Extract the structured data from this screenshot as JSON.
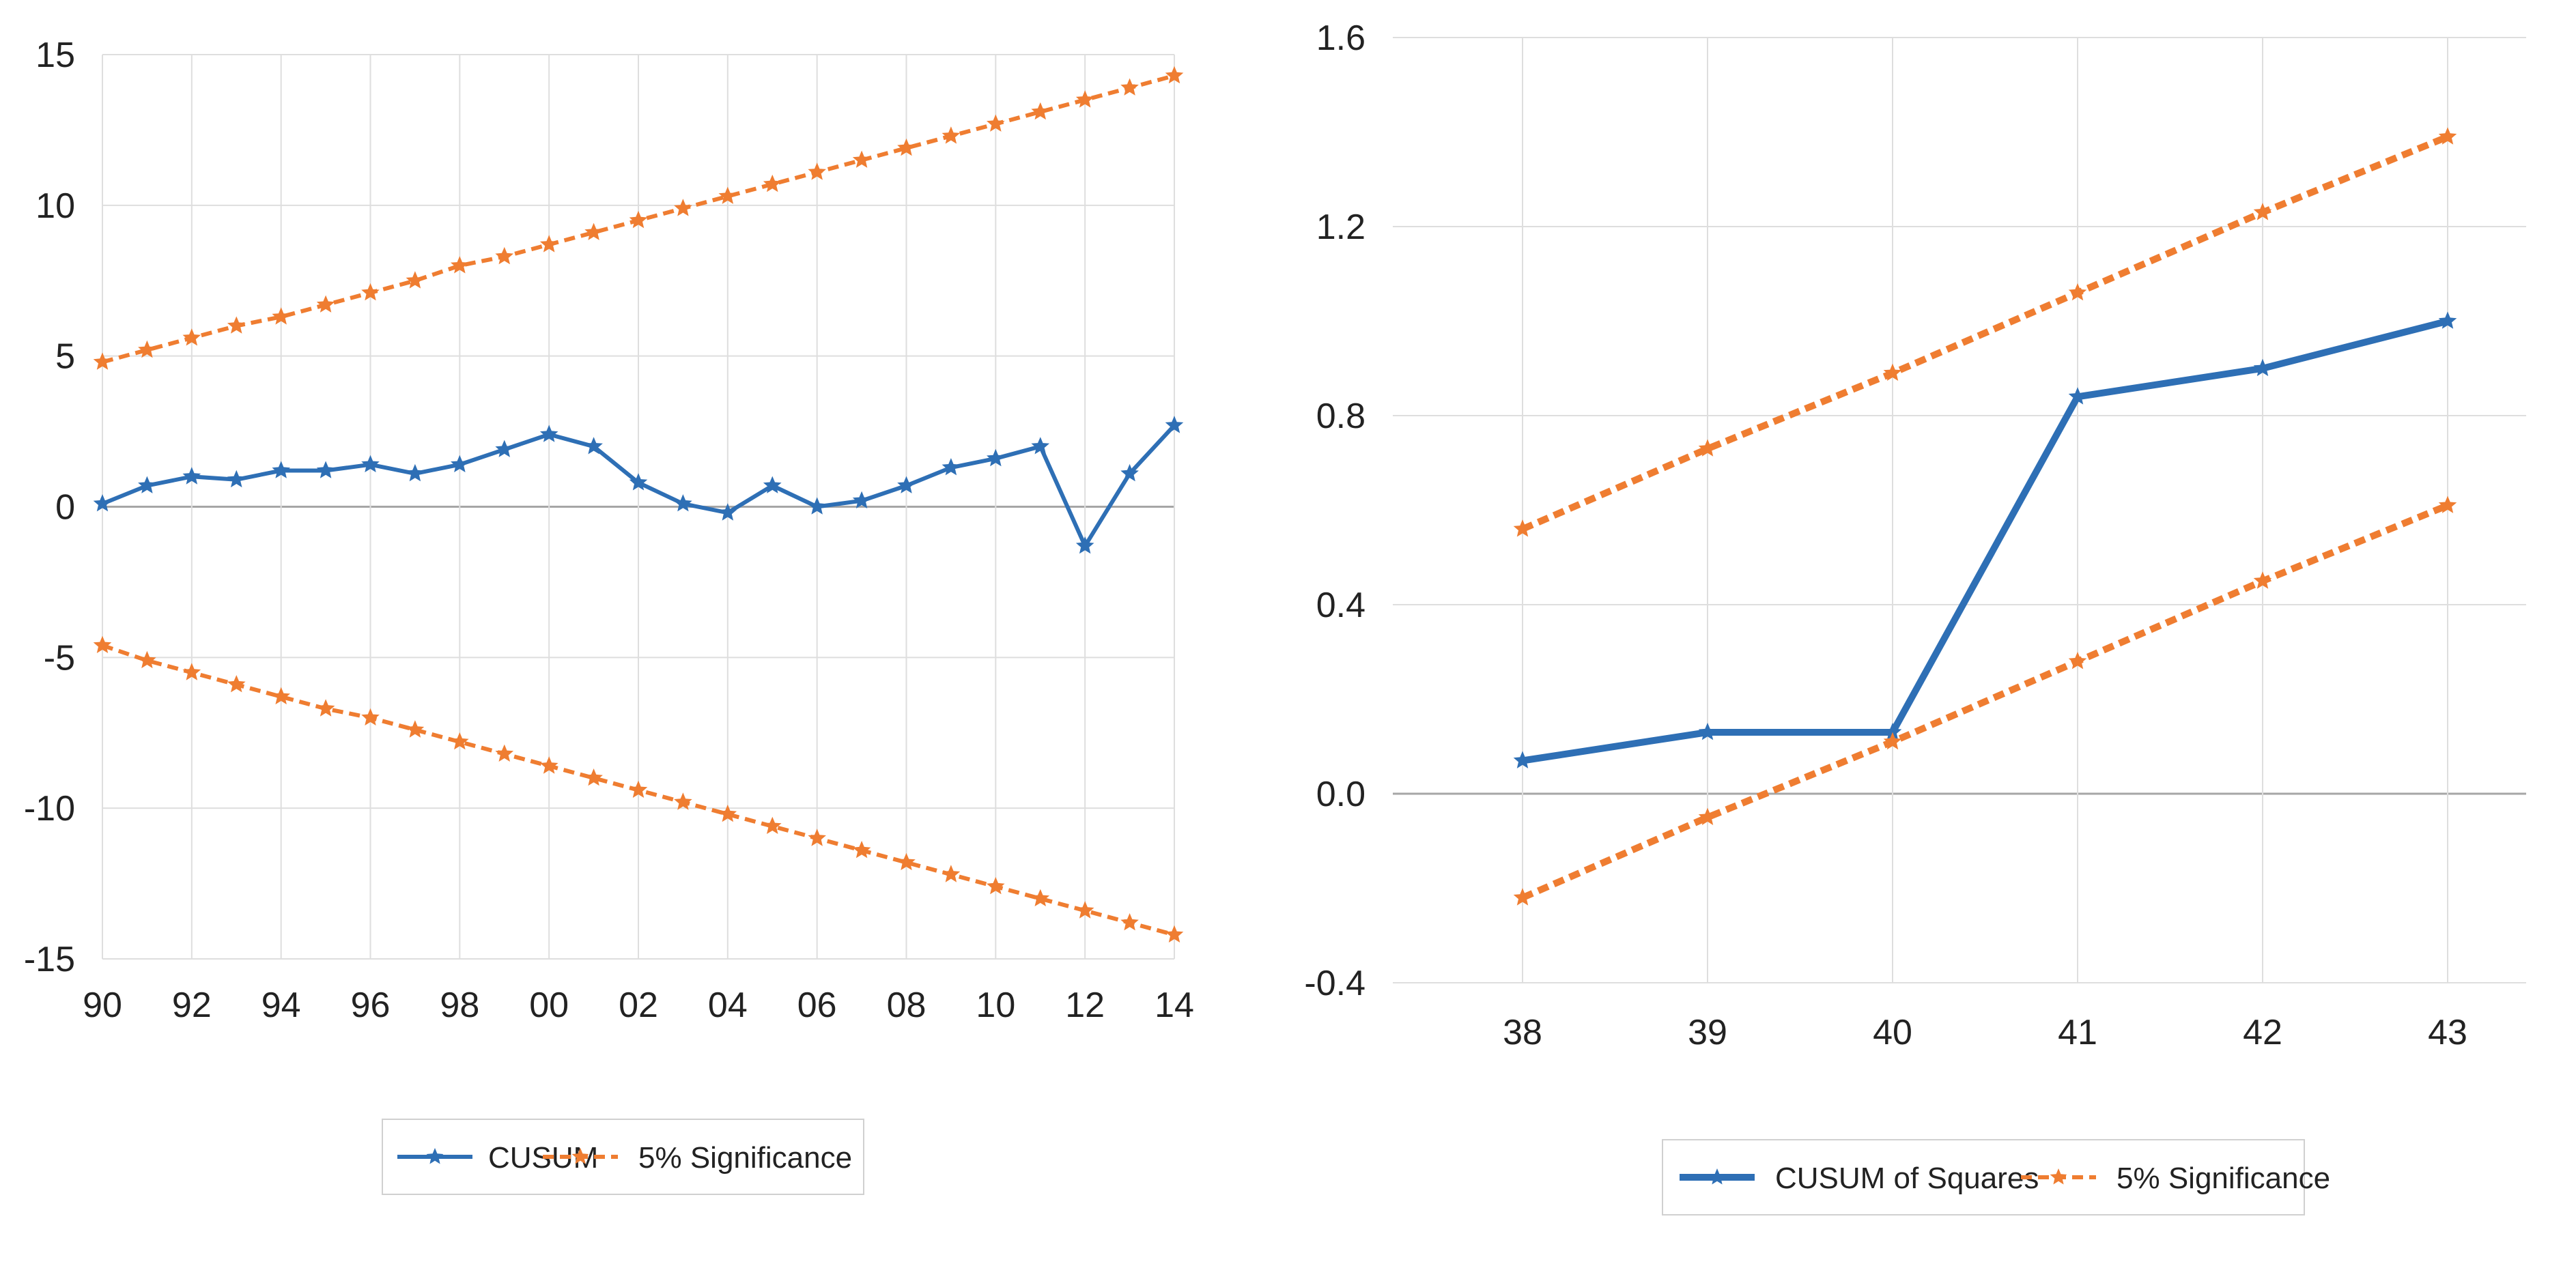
{
  "colors": {
    "cusum": "#2e6fb5",
    "significance": "#ef7d31",
    "grid": "#dedede",
    "axis": "#a6a6a6",
    "text": "#222222"
  },
  "chart_data": [
    {
      "type": "line",
      "title": "",
      "x": [
        "90",
        "91",
        "92",
        "93",
        "94",
        "95",
        "96",
        "97",
        "98",
        "99",
        "00",
        "01",
        "02",
        "03",
        "04",
        "05",
        "06",
        "07",
        "08",
        "09",
        "10",
        "11",
        "12",
        "13",
        "14"
      ],
      "x_tick_labels": [
        "90",
        "92",
        "94",
        "96",
        "98",
        "00",
        "02",
        "04",
        "06",
        "08",
        "10",
        "12",
        "14"
      ],
      "ylim": [
        -15,
        15
      ],
      "y_ticks": [
        15,
        10,
        5,
        0,
        -5,
        -10,
        -15
      ],
      "y_tick_labels": [
        "15",
        "10",
        "5",
        "0",
        "-5",
        "-10",
        "-15"
      ],
      "series": [
        {
          "name": "CUSUM",
          "style": "solid",
          "values": [
            0.1,
            0.7,
            1.0,
            0.9,
            1.2,
            1.2,
            1.4,
            1.1,
            1.4,
            1.9,
            2.4,
            2.0,
            0.8,
            0.1,
            -0.2,
            0.7,
            0.0,
            0.2,
            0.7,
            1.3,
            1.6,
            2.0,
            -1.3,
            1.1,
            2.7
          ]
        },
        {
          "name": "5% Significance",
          "style": "dashed",
          "values": [
            4.8,
            5.2,
            5.6,
            6.0,
            6.3,
            6.7,
            7.1,
            7.5,
            8.0,
            8.3,
            8.7,
            9.1,
            9.5,
            9.9,
            10.3,
            10.7,
            11.1,
            11.5,
            11.9,
            12.3,
            12.7,
            13.1,
            13.5,
            13.9,
            14.3
          ]
        },
        {
          "name": "5% Significance (lower)",
          "style": "dashed",
          "legend": false,
          "values": [
            -4.6,
            -5.1,
            -5.5,
            -5.9,
            -6.3,
            -6.7,
            -7.0,
            -7.4,
            -7.8,
            -8.2,
            -8.6,
            -9.0,
            -9.4,
            -9.8,
            -10.2,
            -10.6,
            -11.0,
            -11.4,
            -11.8,
            -12.2,
            -12.6,
            -13.0,
            -13.4,
            -13.8,
            -14.2
          ]
        }
      ],
      "legend": [
        "CUSUM",
        "5% Significance"
      ]
    },
    {
      "type": "line",
      "title": "",
      "x": [
        "38",
        "39",
        "40",
        "41",
        "42",
        "43"
      ],
      "x_tick_labels": [
        "38",
        "39",
        "40",
        "41",
        "42",
        "43"
      ],
      "ylim": [
        -0.4,
        1.6
      ],
      "y_ticks": [
        1.6,
        1.2,
        0.8,
        0.4,
        0.0,
        -0.4
      ],
      "y_tick_labels": [
        "1.6",
        "1.2",
        "0.8",
        "0.4",
        "0.0",
        "-0.4"
      ],
      "series": [
        {
          "name": "CUSUM of Squares",
          "style": "solid",
          "values": [
            0.07,
            0.13,
            0.13,
            0.84,
            0.9,
            1.0
          ]
        },
        {
          "name": "5% Significance",
          "style": "dashed",
          "values": [
            0.56,
            0.73,
            0.89,
            1.06,
            1.23,
            1.39
          ]
        },
        {
          "name": "5% Significance (lower)",
          "style": "dashed",
          "legend": false,
          "values": [
            -0.22,
            -0.05,
            0.11,
            0.28,
            0.45,
            0.61
          ]
        }
      ],
      "legend": [
        "CUSUM of Squares",
        "5% Significance"
      ]
    }
  ]
}
